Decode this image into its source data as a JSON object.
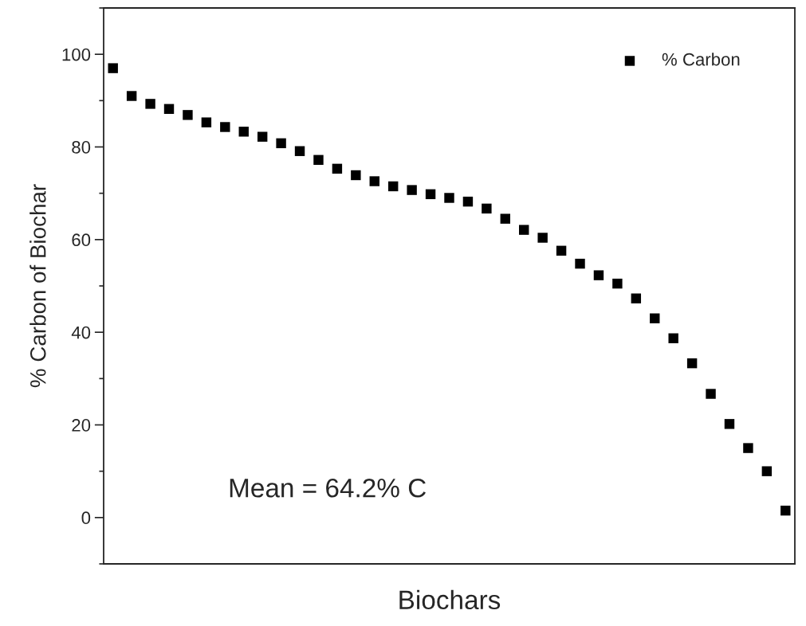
{
  "chart_data": {
    "type": "scatter",
    "xlabel": "Biochars",
    "ylabel": "% Carbon of Biochar",
    "categories": [
      null,
      null,
      null,
      null,
      null,
      null,
      null,
      null,
      null,
      null,
      null,
      null,
      null,
      null,
      null,
      null,
      null,
      null,
      null,
      null,
      null,
      null,
      null,
      null,
      null,
      null,
      null,
      null,
      null,
      null,
      null,
      null,
      null,
      null,
      null,
      null,
      null
    ],
    "series": [
      {
        "name": "% Carbon",
        "color": "#000000",
        "values": [
          97,
          91,
          89.3,
          88.2,
          86.9,
          85.3,
          84.3,
          83.3,
          82.2,
          80.8,
          79.1,
          77.2,
          75.3,
          73.9,
          72.6,
          71.5,
          70.7,
          69.8,
          69,
          68.2,
          66.7,
          64.5,
          62.1,
          60.4,
          57.6,
          54.8,
          52.3,
          50.5,
          47.3,
          43,
          38.7,
          33.3,
          26.7,
          20.2,
          15,
          10,
          1.5
        ]
      }
    ],
    "ylim": [
      -10,
      110
    ],
    "yticks": [
      0,
      20,
      40,
      60,
      80,
      100
    ],
    "tick_labels": "y",
    "marker": "square",
    "legend": "top right",
    "annotations": [
      "Mean = 64.2% C"
    ]
  }
}
